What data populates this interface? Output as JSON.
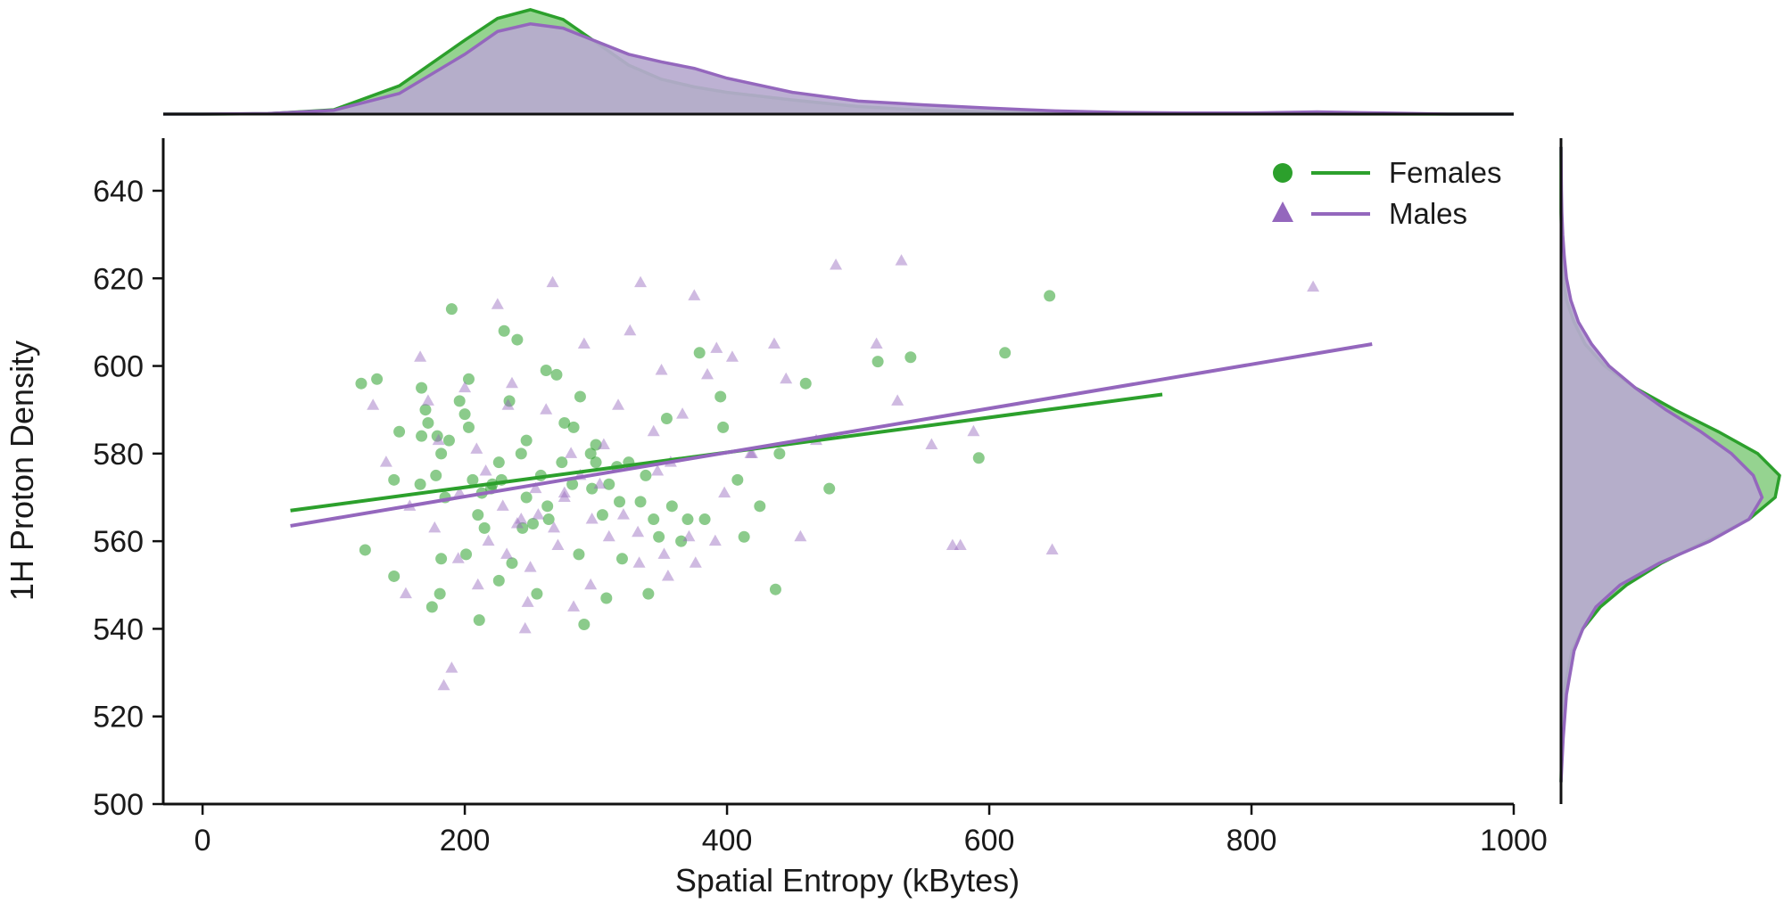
{
  "colors": {
    "females": "#2ca02c",
    "males": "#9467bd"
  },
  "chart_data": {
    "type": "scatter",
    "xlabel": "Spatial Entropy (kBytes)",
    "ylabel": "1H Proton Density",
    "xlim": [
      -30,
      1000
    ],
    "ylim": [
      500,
      652
    ],
    "xticks": [
      0,
      200,
      400,
      600,
      800,
      1000
    ],
    "yticks": [
      500,
      520,
      540,
      560,
      580,
      600,
      620,
      640
    ],
    "legend_position": "top-right",
    "series": [
      {
        "name": "Females",
        "marker": "circle",
        "color": "#2ca02c",
        "regression": {
          "x": [
            67,
            732
          ],
          "y": [
            567,
            593.5
          ]
        },
        "points": [
          [
            121,
            596
          ],
          [
            133,
            597
          ],
          [
            150,
            585
          ],
          [
            167,
            595
          ],
          [
            170,
            590
          ],
          [
            172,
            587
          ],
          [
            178,
            575
          ],
          [
            182,
            580
          ],
          [
            185,
            570
          ],
          [
            188,
            583
          ],
          [
            190,
            613
          ],
          [
            196,
            592
          ],
          [
            200,
            589
          ],
          [
            203,
            597
          ],
          [
            206,
            574
          ],
          [
            210,
            566
          ],
          [
            215,
            563
          ],
          [
            220,
            572
          ],
          [
            226,
            578
          ],
          [
            230,
            608
          ],
          [
            234,
            592
          ],
          [
            240,
            606
          ],
          [
            243,
            580
          ],
          [
            247,
            570
          ],
          [
            252,
            564
          ],
          [
            258,
            575
          ],
          [
            262,
            599
          ],
          [
            270,
            598
          ],
          [
            276,
            587
          ],
          [
            282,
            573
          ],
          [
            288,
            593
          ],
          [
            291,
            541
          ],
          [
            296,
            580
          ],
          [
            300,
            578
          ],
          [
            305,
            566
          ],
          [
            310,
            573
          ],
          [
            318,
            569
          ],
          [
            325,
            578
          ],
          [
            334,
            569
          ],
          [
            344,
            565
          ],
          [
            354,
            588
          ],
          [
            365,
            560
          ],
          [
            379,
            603
          ],
          [
            395,
            593
          ],
          [
            413,
            561
          ],
          [
            425,
            568
          ],
          [
            437,
            549
          ],
          [
            460,
            596
          ],
          [
            478,
            572
          ],
          [
            515,
            601
          ],
          [
            540,
            602
          ],
          [
            592,
            579
          ],
          [
            612,
            603
          ],
          [
            646,
            616
          ],
          [
            124,
            558
          ],
          [
            146,
            552
          ],
          [
            166,
            573
          ],
          [
            175,
            545
          ],
          [
            182,
            556
          ],
          [
            201,
            557
          ],
          [
            211,
            542
          ],
          [
            226,
            551
          ],
          [
            236,
            555
          ],
          [
            244,
            563
          ],
          [
            255,
            548
          ],
          [
            274,
            578
          ],
          [
            287,
            557
          ],
          [
            308,
            547
          ],
          [
            320,
            556
          ],
          [
            340,
            548
          ],
          [
            358,
            568
          ],
          [
            383,
            565
          ],
          [
            408,
            574
          ],
          [
            440,
            580
          ],
          [
            167,
            584
          ],
          [
            203,
            586
          ],
          [
            213,
            571
          ],
          [
            228,
            574
          ],
          [
            247,
            583
          ],
          [
            263,
            568
          ],
          [
            283,
            586
          ],
          [
            300,
            582
          ],
          [
            316,
            577
          ],
          [
            338,
            575
          ],
          [
            348,
            561
          ],
          [
            370,
            565
          ],
          [
            397,
            586
          ],
          [
            146,
            574
          ],
          [
            181,
            548
          ],
          [
            221,
            573
          ],
          [
            264,
            565
          ],
          [
            297,
            572
          ],
          [
            179,
            584
          ]
        ]
      },
      {
        "name": "Males",
        "marker": "triangle",
        "color": "#9467bd",
        "regression": {
          "x": [
            67,
            892
          ],
          "y": [
            563.5,
            605
          ]
        },
        "points": [
          [
            130,
            591
          ],
          [
            140,
            578
          ],
          [
            158,
            568
          ],
          [
            166,
            602
          ],
          [
            172,
            592
          ],
          [
            180,
            583
          ],
          [
            184,
            527
          ],
          [
            190,
            531
          ],
          [
            196,
            571
          ],
          [
            200,
            595
          ],
          [
            209,
            581
          ],
          [
            216,
            576
          ],
          [
            225,
            614
          ],
          [
            233,
            591
          ],
          [
            240,
            564
          ],
          [
            246,
            540
          ],
          [
            250,
            554
          ],
          [
            256,
            566
          ],
          [
            262,
            590
          ],
          [
            267,
            619
          ],
          [
            276,
            571
          ],
          [
            281,
            580
          ],
          [
            291,
            605
          ],
          [
            296,
            550
          ],
          [
            306,
            582
          ],
          [
            317,
            591
          ],
          [
            326,
            608
          ],
          [
            334,
            619
          ],
          [
            344,
            585
          ],
          [
            350,
            599
          ],
          [
            357,
            578
          ],
          [
            366,
            589
          ],
          [
            375,
            616
          ],
          [
            385,
            598
          ],
          [
            392,
            604
          ],
          [
            404,
            602
          ],
          [
            419,
            580
          ],
          [
            436,
            605
          ],
          [
            445,
            597
          ],
          [
            468,
            583
          ],
          [
            483,
            623
          ],
          [
            514,
            605
          ],
          [
            530,
            592
          ],
          [
            533,
            624
          ],
          [
            556,
            582
          ],
          [
            572,
            559
          ],
          [
            578,
            559
          ],
          [
            588,
            585
          ],
          [
            648,
            558
          ],
          [
            847,
            618
          ],
          [
            155,
            548
          ],
          [
            177,
            563
          ],
          [
            195,
            556
          ],
          [
            210,
            550
          ],
          [
            232,
            557
          ],
          [
            248,
            546
          ],
          [
            268,
            563
          ],
          [
            288,
            575
          ],
          [
            310,
            561
          ],
          [
            332,
            562
          ],
          [
            352,
            557
          ],
          [
            376,
            555
          ],
          [
            398,
            571
          ],
          [
            418,
            580
          ],
          [
            456,
            561
          ],
          [
            229,
            568
          ],
          [
            254,
            572
          ],
          [
            276,
            570
          ],
          [
            303,
            573
          ],
          [
            321,
            566
          ],
          [
            347,
            576
          ],
          [
            371,
            561
          ],
          [
            243,
            565
          ],
          [
            218,
            560
          ],
          [
            297,
            565
          ],
          [
            283,
            545
          ],
          [
            333,
            555
          ],
          [
            355,
            552
          ],
          [
            271,
            559
          ],
          [
            236,
            596
          ],
          [
            391,
            560
          ]
        ]
      }
    ],
    "marginal_x": {
      "x": [
        -30,
        0,
        50,
        100,
        150,
        200,
        225,
        250,
        275,
        300,
        325,
        350,
        375,
        400,
        450,
        500,
        550,
        600,
        650,
        700,
        750,
        800,
        850,
        900,
        950,
        1000
      ],
      "Females": [
        0,
        0,
        0.004,
        0.04,
        0.26,
        0.68,
        0.88,
        0.96,
        0.87,
        0.66,
        0.45,
        0.32,
        0.25,
        0.2,
        0.13,
        0.07,
        0.035,
        0.02,
        0.01,
        0.005,
        0.003,
        0.002,
        0.002,
        0.001,
        0,
        0
      ],
      "Males": [
        0,
        0,
        0.005,
        0.035,
        0.19,
        0.55,
        0.76,
        0.83,
        0.79,
        0.67,
        0.55,
        0.48,
        0.42,
        0.33,
        0.2,
        0.12,
        0.085,
        0.055,
        0.03,
        0.015,
        0.01,
        0.01,
        0.02,
        0.01,
        0,
        0
      ]
    },
    "marginal_y": {
      "y": [
        505,
        515,
        525,
        535,
        540,
        545,
        550,
        555,
        560,
        565,
        570,
        575,
        580,
        585,
        590,
        595,
        600,
        605,
        610,
        615,
        620,
        625,
        630,
        635,
        640,
        650
      ],
      "Females": [
        0,
        0.004,
        0.01,
        0.05,
        0.1,
        0.18,
        0.3,
        0.46,
        0.66,
        0.86,
        0.98,
        1.0,
        0.9,
        0.72,
        0.52,
        0.34,
        0.2,
        0.11,
        0.06,
        0.025,
        0.01,
        0.005,
        0.002,
        0,
        0,
        0
      ],
      "Males": [
        0,
        0.01,
        0.025,
        0.06,
        0.1,
        0.16,
        0.27,
        0.45,
        0.68,
        0.86,
        0.92,
        0.88,
        0.78,
        0.64,
        0.48,
        0.34,
        0.22,
        0.14,
        0.08,
        0.045,
        0.025,
        0.015,
        0.008,
        0.004,
        0.002,
        0
      ]
    }
  }
}
